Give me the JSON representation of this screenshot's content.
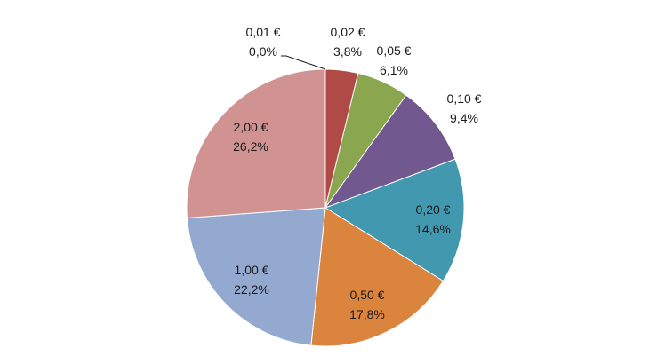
{
  "chart_data": {
    "type": "pie",
    "slices": [
      {
        "label": "0,01 €",
        "pct_text": "0,0%",
        "value": 0.0,
        "color": "#4F81BD"
      },
      {
        "label": "0,02 €",
        "pct_text": "3,8%",
        "value": 3.8,
        "color": "#B04A47"
      },
      {
        "label": "0,05 €",
        "pct_text": "6,1%",
        "value": 6.1,
        "color": "#8AA64E"
      },
      {
        "label": "0,10 €",
        "pct_text": "9,4%",
        "value": 9.4,
        "color": "#71588F"
      },
      {
        "label": "0,20 €",
        "pct_text": "14,6%",
        "value": 14.6,
        "color": "#4198AF"
      },
      {
        "label": "0,50 €",
        "pct_text": "17,8%",
        "value": 17.8,
        "color": "#DB843D"
      },
      {
        "label": "1,00 €",
        "pct_text": "22,2%",
        "value": 22.2,
        "color": "#93A9CF"
      },
      {
        "label": "2,00 €",
        "pct_text": "26,2%",
        "value": 26.2,
        "color": "#D19392"
      }
    ]
  }
}
